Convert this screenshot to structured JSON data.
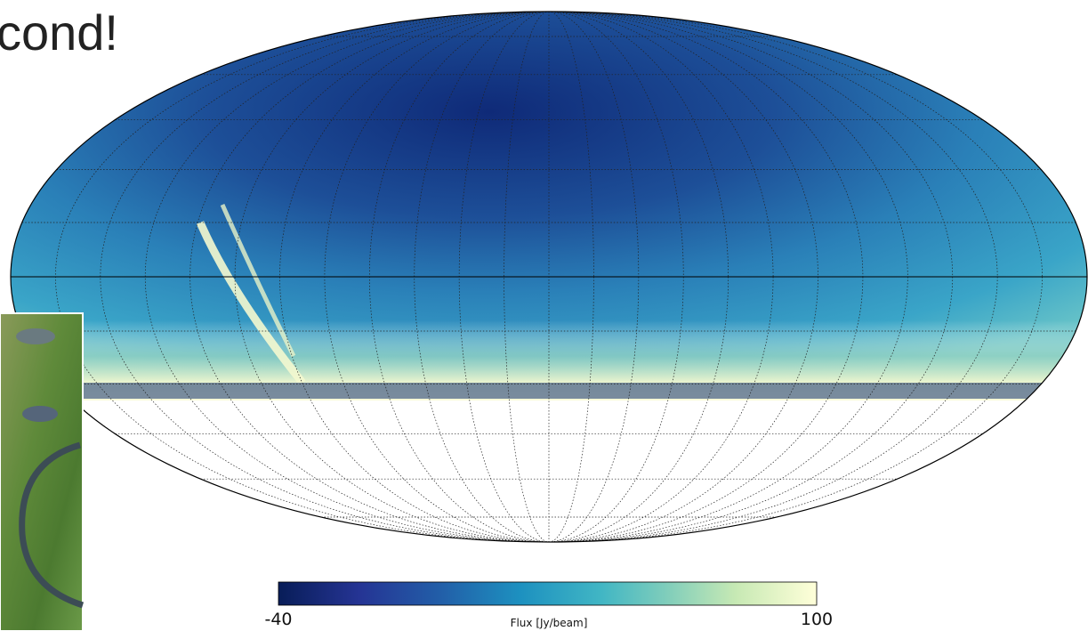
{
  "slide": {
    "title": "cond!"
  },
  "colorbar": {
    "label": "Flux [Jy/beam]",
    "min": -40,
    "max": 100
  }
}
